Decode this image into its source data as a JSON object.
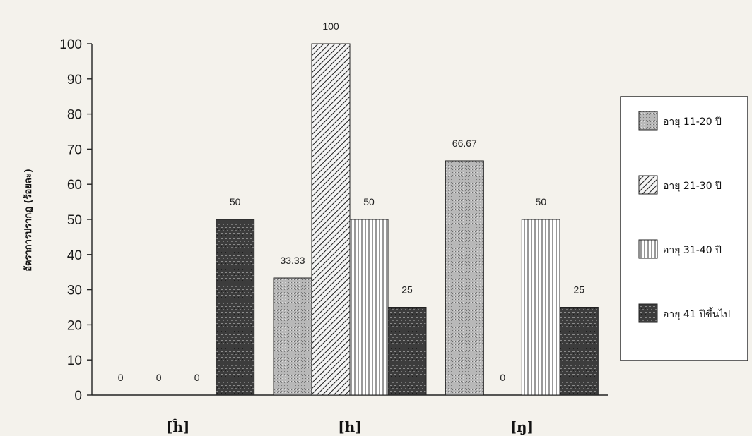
{
  "chart_data": {
    "type": "bar",
    "ylabel": "อัตราการปรากฏ (ร้อยละ)",
    "ylim": [
      0,
      100
    ],
    "yticks": [
      0,
      10,
      20,
      30,
      40,
      50,
      60,
      70,
      80,
      90,
      100
    ],
    "categories": [
      "[ĥ]",
      "[h]",
      "[ŋ]"
    ],
    "series": [
      {
        "name": "อายุ 11-20 ปี",
        "values": [
          0,
          33.33,
          66.67
        ],
        "labels": [
          "0",
          "33.33",
          "66.67"
        ],
        "pattern": "dots",
        "color": "#a9a9a9"
      },
      {
        "name": "อายุ 21-30 ปี",
        "values": [
          0,
          100,
          0
        ],
        "labels": [
          "0",
          "100",
          "0"
        ],
        "pattern": "diag",
        "color": "#f2f2f2"
      },
      {
        "name": "อายุ 31-40 ปี",
        "values": [
          0,
          50,
          50
        ],
        "labels": [
          "0",
          "50",
          "50"
        ],
        "pattern": "vert",
        "color": "#ffffff"
      },
      {
        "name": "อายุ 41 ปีขึ้นไป",
        "values": [
          50,
          25,
          25
        ],
        "labels": [
          "50",
          "25",
          "25"
        ],
        "pattern": "dark",
        "color": "#3a3a3a"
      }
    ],
    "legend_position": "right",
    "grid": false
  }
}
